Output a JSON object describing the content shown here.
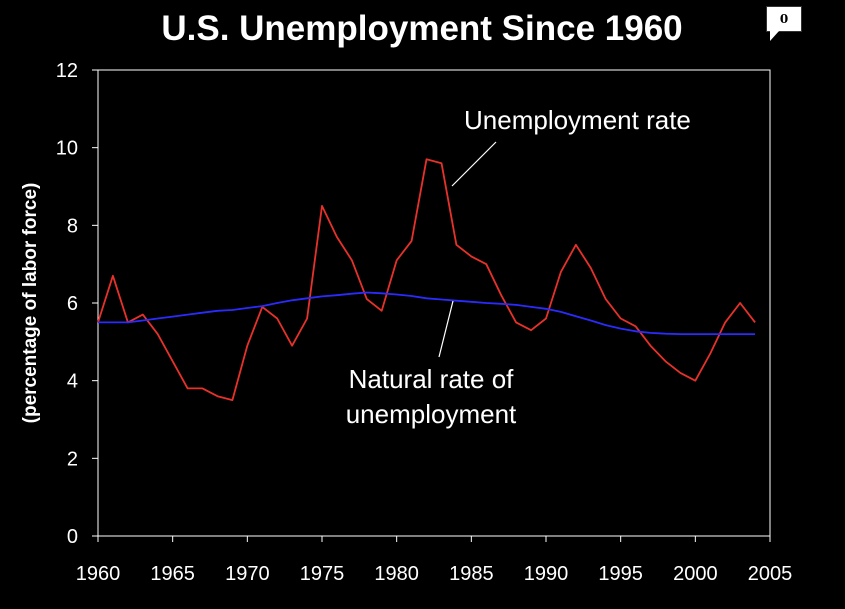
{
  "comment_badge": {
    "count": "0"
  },
  "colors": {
    "background": "#000000",
    "axis": "#ffffff",
    "grid": "#ffffff",
    "unemployment": "#e8312a",
    "natural": "#2b2bff",
    "leader": "#ffffff"
  },
  "chart_data": {
    "type": "line",
    "title": "U.S. Unemployment Since 1960",
    "xlabel": "",
    "ylabel": "(percentage of labor force)",
    "xlim": [
      1960,
      2005
    ],
    "ylim": [
      0,
      12
    ],
    "xticks": [
      1960,
      1965,
      1970,
      1975,
      1980,
      1985,
      1990,
      1995,
      2000,
      2005
    ],
    "yticks": [
      0,
      2,
      4,
      6,
      8,
      10,
      12
    ],
    "grid": false,
    "x": [
      1960,
      1961,
      1962,
      1963,
      1964,
      1965,
      1966,
      1967,
      1968,
      1969,
      1970,
      1971,
      1972,
      1973,
      1974,
      1975,
      1976,
      1977,
      1978,
      1979,
      1980,
      1981,
      1982,
      1983,
      1984,
      1985,
      1986,
      1987,
      1988,
      1989,
      1990,
      1991,
      1992,
      1993,
      1994,
      1995,
      1996,
      1997,
      1998,
      1999,
      2000,
      2001,
      2002,
      2003,
      2004
    ],
    "series": [
      {
        "name": "Unemployment rate",
        "values": [
          5.5,
          6.7,
          5.5,
          5.7,
          5.2,
          4.5,
          3.8,
          3.8,
          3.6,
          3.5,
          4.9,
          5.9,
          5.6,
          4.9,
          5.6,
          8.5,
          7.7,
          7.1,
          6.1,
          5.8,
          7.1,
          7.6,
          9.7,
          9.6,
          7.5,
          7.2,
          7.0,
          6.2,
          5.5,
          5.3,
          5.6,
          6.8,
          7.5,
          6.9,
          6.1,
          5.6,
          5.4,
          4.9,
          4.5,
          4.2,
          4.0,
          4.7,
          5.5,
          6.0,
          5.5
        ]
      },
      {
        "name": "Natural rate of unemployment",
        "values": [
          5.5,
          5.5,
          5.5,
          5.55,
          5.6,
          5.65,
          5.7,
          5.75,
          5.8,
          5.82,
          5.87,
          5.92,
          6.0,
          6.07,
          6.12,
          6.17,
          6.2,
          6.24,
          6.27,
          6.25,
          6.22,
          6.18,
          6.12,
          6.09,
          6.06,
          6.03,
          6.0,
          5.98,
          5.95,
          5.9,
          5.85,
          5.77,
          5.66,
          5.55,
          5.43,
          5.34,
          5.27,
          5.23,
          5.21,
          5.2,
          5.2,
          5.2,
          5.2,
          5.2,
          5.2
        ]
      }
    ],
    "annotations": [
      {
        "text": "Unemployment rate",
        "target_year": 1983.5,
        "target_value": 9.2
      },
      {
        "line1": "Natural rate of",
        "line2": "unemployment",
        "target_year": 1983.7,
        "target_value": 6.1
      }
    ]
  }
}
